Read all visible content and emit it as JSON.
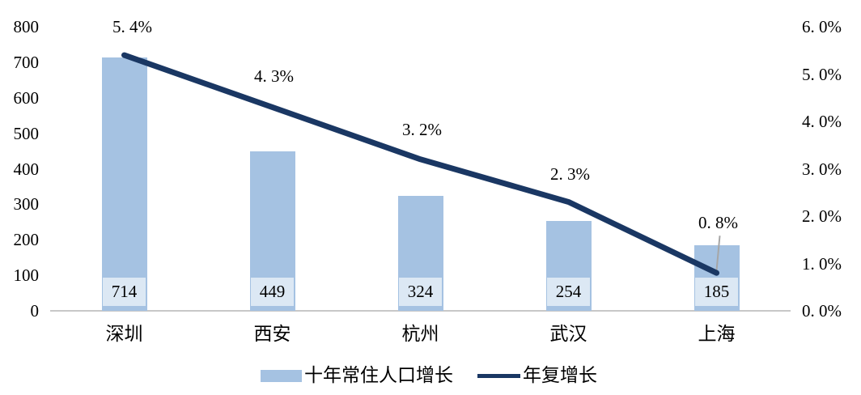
{
  "chart_data": {
    "type": "combo",
    "title": "",
    "categories": [
      "深圳",
      "西安",
      "杭州",
      "武汉",
      "上海"
    ],
    "series": [
      {
        "name": "十年常住人口增长",
        "type": "bar",
        "axis": "left",
        "values": [
          714,
          449,
          324,
          254,
          185
        ],
        "data_labels": [
          "714",
          "449",
          "324",
          "254",
          "185"
        ],
        "color": "#A5C2E2",
        "label_box_color": "#DCE8F4"
      },
      {
        "name": "年复增长",
        "type": "line",
        "axis": "right",
        "values": [
          5.4,
          4.3,
          3.2,
          2.3,
          0.8
        ],
        "data_labels": [
          "5. 4%",
          "4. 3%",
          "3. 2%",
          "2. 3%",
          "0. 8%"
        ],
        "color": "#1A3763"
      }
    ],
    "left_axis": {
      "min": 0,
      "max": 800,
      "tick_step": 100,
      "ticks": [
        "0",
        "100",
        "200",
        "300",
        "400",
        "500",
        "600",
        "700",
        "800"
      ]
    },
    "right_axis": {
      "min": 0,
      "max": 6,
      "tick_step": 1,
      "ticks": [
        "0. 0%",
        "1. 0%",
        "2. 0%",
        "3. 0%",
        "4. 0%",
        "5. 0%",
        "6. 0%"
      ]
    },
    "grid": false,
    "legend_position": "bottom",
    "colors": {
      "axis_line": "#C8C8C8",
      "leader_line": "#A6A6A6",
      "text": "#000000",
      "background": "#FFFFFF"
    }
  }
}
